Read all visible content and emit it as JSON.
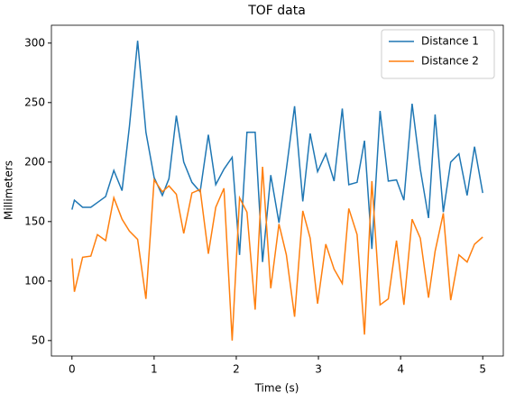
{
  "chart_data": {
    "type": "line",
    "title": "TOF data",
    "x_label": "Time (s)",
    "y_label": "Millimeters",
    "x": [
      0,
      0.03,
      0.13,
      0.23,
      0.31,
      0.41,
      0.51,
      0.61,
      0.7,
      0.8,
      0.9,
      1.0,
      1.1,
      1.18,
      1.27,
      1.36,
      1.46,
      1.56,
      1.66,
      1.75,
      1.85,
      1.95,
      2.04,
      2.13,
      2.23,
      2.32,
      2.42,
      2.52,
      2.61,
      2.71,
      2.81,
      2.9,
      2.99,
      3.09,
      3.19,
      3.29,
      3.37,
      3.47,
      3.56,
      3.65,
      3.75,
      3.85,
      3.95,
      4.04,
      4.14,
      4.24,
      4.34,
      4.42,
      4.52,
      4.61,
      4.71,
      4.81,
      4.9,
      5.0
    ],
    "series": [
      {
        "name": "Distance 1",
        "color": "#1f77b4",
        "values": [
          160,
          168,
          162,
          162,
          166,
          171,
          193,
          176,
          230,
          302,
          225,
          187,
          172,
          186,
          239,
          200,
          183,
          175,
          223,
          181,
          194,
          204,
          122,
          225,
          225,
          116,
          189,
          149,
          194,
          247,
          167,
          224,
          192,
          207,
          184,
          245,
          181,
          183,
          218,
          127,
          243,
          184,
          185,
          168,
          249,
          194,
          153,
          240,
          158,
          200,
          207,
          172,
          213,
          174
        ]
      },
      {
        "name": "Distance 2",
        "color": "#ff7f0e",
        "values": [
          119,
          91,
          120,
          121,
          139,
          134,
          170,
          152,
          142,
          135,
          85,
          185,
          175,
          180,
          173,
          140,
          174,
          177,
          123,
          162,
          178,
          50,
          170,
          158,
          76,
          196,
          94,
          148,
          122,
          70,
          159,
          136,
          81,
          131,
          110,
          98,
          161,
          139,
          55,
          184,
          80,
          85,
          134,
          80,
          152,
          136,
          86,
          125,
          157,
          84,
          122,
          116,
          131,
          137
        ]
      }
    ],
    "xlim": [
      -0.25,
      5.25
    ],
    "xticks": [
      0,
      1,
      2,
      3,
      4,
      5
    ],
    "ylim": [
      37,
      315
    ],
    "yticks": [
      50,
      100,
      150,
      200,
      250,
      300
    ],
    "legend": "upper right"
  }
}
